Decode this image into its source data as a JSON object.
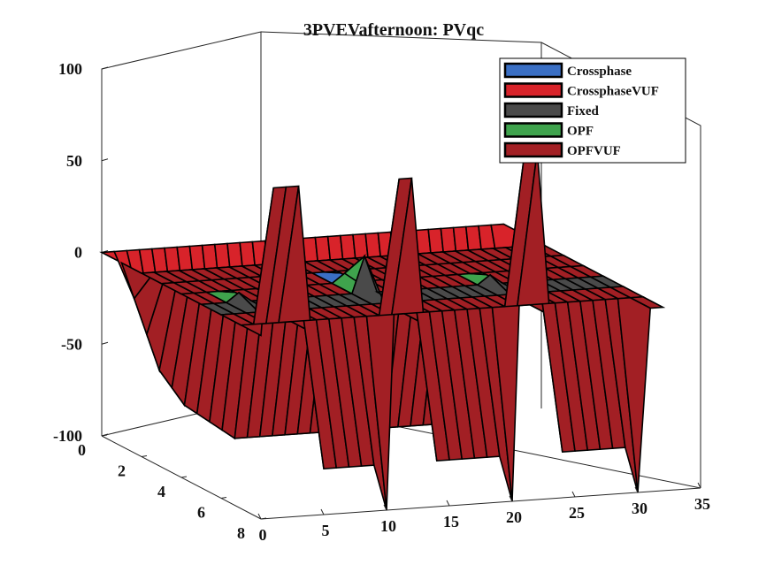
{
  "chart_data": {
    "type": "surface3d",
    "title": "3PVEVafternoon: PVqc",
    "xlabel": "",
    "ylabel": "",
    "zlabel": "",
    "xlim": [
      0,
      35
    ],
    "ylim": [
      0,
      8
    ],
    "zlim": [
      -100,
      100
    ],
    "x_ticks": [
      0,
      5,
      10,
      15,
      20,
      25,
      30,
      35
    ],
    "y_ticks": [
      0,
      2,
      4,
      6,
      8
    ],
    "z_ticks": [
      100,
      50,
      0,
      -50,
      -100
    ],
    "legend_position": "top-right",
    "colors": {
      "Crossphase": "#3a6fc4",
      "CrossphaseVUF": "#d8232a",
      "Fixed": "#4a4a4a",
      "OPF": "#3fa34d",
      "OPFVUF": "#a21f24"
    },
    "series": [
      {
        "name": "Crossphase",
        "description_values": "near 0 everywhere",
        "spikes": [
          {
            "x": 13,
            "y": 4,
            "z": 5
          }
        ]
      },
      {
        "name": "CrossphaseVUF",
        "y": 1,
        "x": [
          0,
          1,
          2,
          3,
          4,
          5,
          6,
          7,
          8,
          9,
          10,
          11,
          12,
          13,
          14,
          15,
          16,
          17,
          18,
          19,
          20,
          21,
          22,
          23,
          24,
          25,
          26,
          27,
          28,
          29,
          30,
          31,
          32
        ],
        "values": [
          0,
          -20,
          -40,
          -60,
          -70,
          -80,
          -85,
          -90,
          -95,
          -100,
          -100,
          -100,
          -100,
          -100,
          -100,
          -100,
          -100,
          -100,
          -100,
          -100,
          -100,
          -100,
          -100,
          -100,
          -100,
          -100,
          -100,
          -100,
          -100,
          -100,
          -90,
          -60,
          0
        ]
      },
      {
        "name": "Fixed",
        "description_values": "0 everywhere"
      },
      {
        "name": "OPF",
        "spikes": [
          {
            "x": 13,
            "y": 5,
            "z": 20
          },
          {
            "x": 3,
            "y": 5,
            "z": 5
          },
          {
            "x": 23,
            "y": 5,
            "z": 5
          }
        ]
      },
      {
        "name": "OPFVUF",
        "y": 8,
        "x": [
          0,
          1,
          2,
          3,
          4,
          5,
          6,
          7,
          8,
          9,
          10,
          11,
          12,
          13,
          14,
          15,
          16,
          17,
          18,
          19,
          20,
          21,
          22,
          23,
          24,
          25,
          26,
          27,
          28,
          29,
          30,
          31,
          32
        ],
        "values": [
          0,
          80,
          80,
          80,
          0,
          -75,
          -75,
          -75,
          -75,
          -75,
          -100,
          80,
          80,
          0,
          -75,
          -75,
          -75,
          -75,
          -75,
          -75,
          -100,
          90,
          90,
          0,
          -75,
          -75,
          -75,
          -75,
          -75,
          -75,
          -100,
          0,
          0
        ]
      }
    ]
  }
}
